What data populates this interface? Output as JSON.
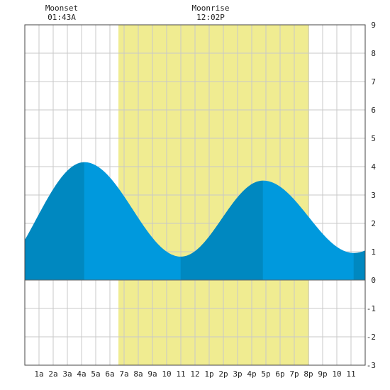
{
  "header": {
    "moonset": {
      "label": "Moonset",
      "time": "01:43A"
    },
    "moonrise": {
      "label": "Moonrise",
      "time": "12:02P"
    }
  },
  "colors": {
    "daylight": "#f0ec91",
    "tide_light": "#0099dd",
    "tide_dark": "#0088c0",
    "grid": "#c8c8c8",
    "frame": "#444444",
    "background": "#ffffff"
  },
  "chart_data": {
    "type": "area",
    "xlim": [
      0,
      24
    ],
    "ylim": [
      -3,
      9
    ],
    "y_ticks": [
      -3,
      -2,
      -1,
      0,
      1,
      2,
      3,
      4,
      5,
      6,
      7,
      8,
      9
    ],
    "x_ticks": [
      {
        "x": 1,
        "label": "1a"
      },
      {
        "x": 2,
        "label": "2a"
      },
      {
        "x": 3,
        "label": "3a"
      },
      {
        "x": 4,
        "label": "4a"
      },
      {
        "x": 5,
        "label": "5a"
      },
      {
        "x": 6,
        "label": "6a"
      },
      {
        "x": 7,
        "label": "7a"
      },
      {
        "x": 8,
        "label": "8a"
      },
      {
        "x": 9,
        "label": "9a"
      },
      {
        "x": 10,
        "label": "10"
      },
      {
        "x": 11,
        "label": "11"
      },
      {
        "x": 12,
        "label": "12"
      },
      {
        "x": 13,
        "label": "1p"
      },
      {
        "x": 14,
        "label": "2p"
      },
      {
        "x": 15,
        "label": "3p"
      },
      {
        "x": 16,
        "label": "4p"
      },
      {
        "x": 17,
        "label": "5p"
      },
      {
        "x": 18,
        "label": "6p"
      },
      {
        "x": 19,
        "label": "7p"
      },
      {
        "x": 20,
        "label": "8p"
      },
      {
        "x": 21,
        "label": "9p"
      },
      {
        "x": 22,
        "label": "10"
      },
      {
        "x": 23,
        "label": "11"
      }
    ],
    "grid": true,
    "daylight": {
      "start": 6.6,
      "end": 20.05
    },
    "moonset_hour": 1.72,
    "moonrise_hour": 12.03,
    "tide_extremes": [
      {
        "hour": 4.2,
        "height": 4.15,
        "kind": "high"
      },
      {
        "hour": 11.0,
        "height": 0.82,
        "kind": "low"
      },
      {
        "hour": 16.8,
        "height": 3.5,
        "kind": "high"
      },
      {
        "hour": 23.2,
        "height": 0.95,
        "kind": "low"
      }
    ],
    "tide_start": {
      "hour": 0,
      "height": 1.4
    },
    "tide_end": {
      "hour": 24,
      "height": 1.05
    }
  }
}
